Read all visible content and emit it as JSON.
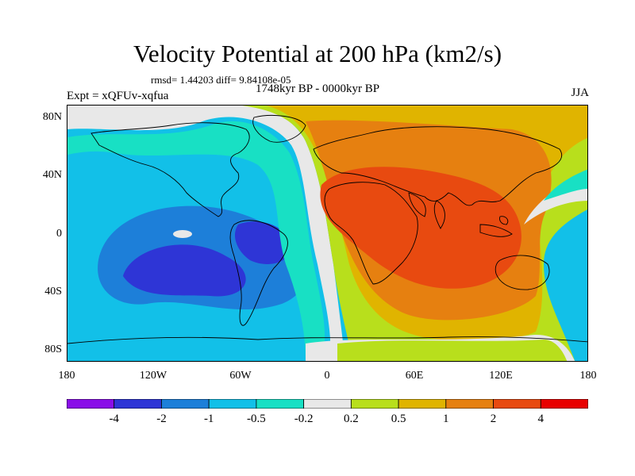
{
  "title": "Velocity Potential at 200 hPa (km2/s)",
  "stats": "rmsd= 1.44203 diff= 9.84108e-05",
  "experiment": "Expt = xQFUv-xqfua",
  "period": "1748kyr BP - 0000kyr BP",
  "season": "JJA",
  "lat_ticks": [
    "80N",
    "40N",
    "0",
    "40S",
    "80S"
  ],
  "lon_ticks": [
    "180",
    "120W",
    "60W",
    "0",
    "60E",
    "120E",
    "180"
  ],
  "colorbar": {
    "labels": [
      "-4",
      "-2",
      "-1",
      "-0.5",
      "-0.2",
      "0.2",
      "0.5",
      "1",
      "2",
      "4"
    ],
    "colors": [
      "#8a0ee8",
      "#2e35d6",
      "#1d7fd9",
      "#12c0e8",
      "#18e0c4",
      "#e8e8e8",
      "#b8df1c",
      "#e0b400",
      "#e68010",
      "#e84a10",
      "#e80000"
    ]
  }
}
